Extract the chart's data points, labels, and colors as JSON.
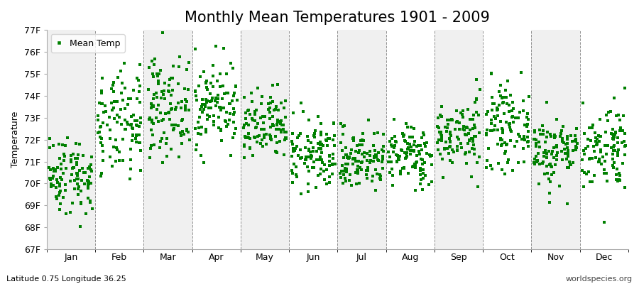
{
  "title": "Monthly Mean Temperatures 1901 - 2009",
  "ylabel": "Temperature",
  "subtitle_left": "Latitude 0.75 Longitude 36.25",
  "subtitle_right": "worldspecies.org",
  "legend_label": "Mean Temp",
  "ylim": [
    67,
    77
  ],
  "yticks": [
    67,
    68,
    69,
    70,
    71,
    72,
    73,
    74,
    75,
    76,
    77
  ],
  "ytick_labels": [
    "67F",
    "68F",
    "69F",
    "70F",
    "71F",
    "72F",
    "73F",
    "74F",
    "75F",
    "76F",
    "77F"
  ],
  "months": [
    "Jan",
    "Feb",
    "Mar",
    "Apr",
    "May",
    "Jun",
    "Jul",
    "Aug",
    "Sep",
    "Oct",
    "Nov",
    "Dec"
  ],
  "marker_color": "#008000",
  "marker_size": 3,
  "bg_color": "#ffffff",
  "plot_bg_color": "#ffffff",
  "band_colors": [
    "#f0f0f0",
    "#ffffff"
  ],
  "grid_color": "#666666",
  "title_fontsize": 15,
  "label_fontsize": 9,
  "tick_fontsize": 9,
  "month_means": [
    70.4,
    72.6,
    73.5,
    73.6,
    72.5,
    71.3,
    71.1,
    71.3,
    72.2,
    72.6,
    71.5,
    71.7
  ],
  "month_stds": [
    0.9,
    1.2,
    1.1,
    1.0,
    0.8,
    0.8,
    0.7,
    0.7,
    0.8,
    0.9,
    0.8,
    1.0
  ],
  "n_years": 109,
  "seed": 42
}
